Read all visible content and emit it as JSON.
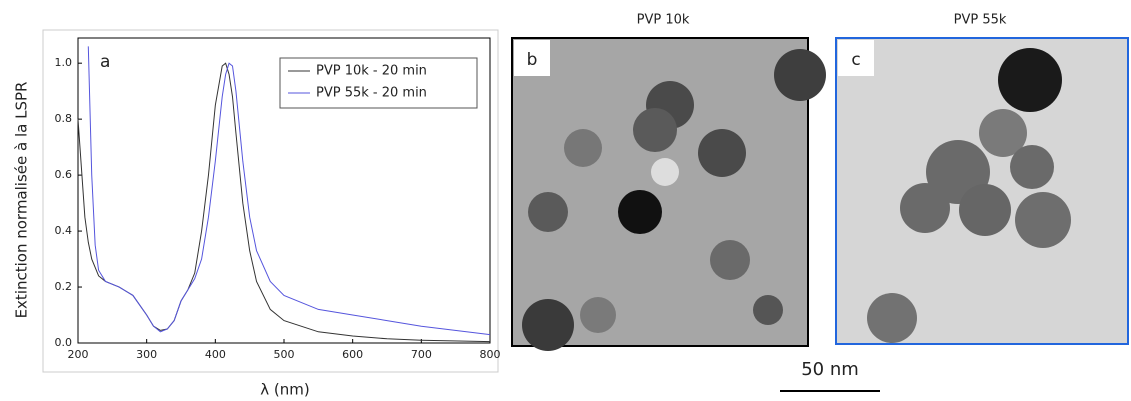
{
  "chart_data": {
    "type": "line",
    "panel_label": "a",
    "x_label": "λ (nm)",
    "y_label": "Extinction normalisée à la LSPR",
    "x": [
      200,
      210,
      215,
      220,
      225,
      230,
      240,
      260,
      280,
      300,
      310,
      320,
      330,
      340,
      350,
      360,
      370,
      380,
      390,
      400,
      410,
      415,
      420,
      425,
      430,
      440,
      450,
      460,
      480,
      500,
      550,
      600,
      650,
      700,
      800
    ],
    "series": [
      {
        "name": "PVP 10k - 20 min",
        "color": "#333333",
        "values": [
          0.8,
          0.45,
          0.36,
          0.3,
          0.27,
          0.24,
          0.22,
          0.2,
          0.17,
          0.1,
          0.06,
          0.045,
          0.05,
          0.08,
          0.15,
          0.19,
          0.25,
          0.4,
          0.6,
          0.85,
          0.99,
          1.0,
          0.96,
          0.88,
          0.75,
          0.5,
          0.33,
          0.22,
          0.12,
          0.08,
          0.04,
          0.025,
          0.015,
          0.01,
          0.005
        ]
      },
      {
        "name": "PVP 55k - 20 min",
        "color": "#5555dd",
        "values": [
          null,
          null,
          1.06,
          0.6,
          0.35,
          0.26,
          0.22,
          0.2,
          0.17,
          0.1,
          0.06,
          0.04,
          0.05,
          0.08,
          0.15,
          0.19,
          0.23,
          0.3,
          0.45,
          0.65,
          0.88,
          0.96,
          1.0,
          0.99,
          0.9,
          0.65,
          0.45,
          0.33,
          0.22,
          0.17,
          0.12,
          0.1,
          0.08,
          0.06,
          0.03
        ]
      }
    ],
    "xlim": [
      200,
      800
    ],
    "xticks": [
      200,
      300,
      400,
      500,
      600,
      700,
      800
    ],
    "ylim": [
      0,
      1.09
    ],
    "yticks": [
      {
        "value": 0,
        "label": "0.0"
      },
      0.2,
      0.4,
      0.6,
      0.8,
      {
        "value": 1,
        "label": "1.0"
      }
    ],
    "legend": "upper right"
  },
  "panels": [
    {
      "title": "PVP 10k",
      "label": "b"
    },
    {
      "title": "PVP 55k",
      "label": "c"
    }
  ],
  "scale_bar": "50 nm"
}
